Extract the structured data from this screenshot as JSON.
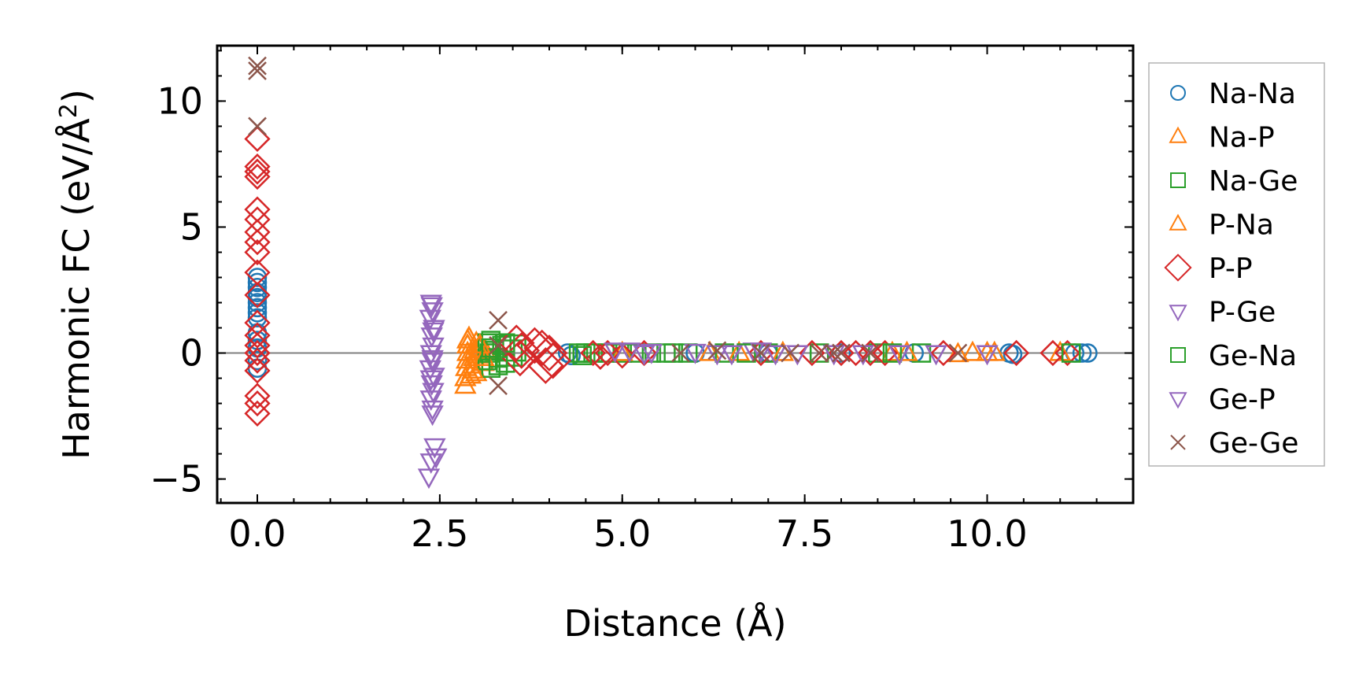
{
  "chart_data": {
    "type": "scatter",
    "xlabel": "Distance (Å)",
    "ylabel_main": "Harmonic FC (eV/Å",
    "ylabel_sup": "2",
    "ylabel_close": ")",
    "xlim": [
      -0.55,
      12.0
    ],
    "ylim": [
      -5.95,
      12.2
    ],
    "xticks": [
      0.0,
      2.5,
      5.0,
      7.5,
      10.0
    ],
    "xtick_labels": [
      "0.0",
      "2.5",
      "5.0",
      "7.5",
      "10.0"
    ],
    "yticks": [
      -5,
      0,
      5,
      10
    ],
    "ytick_labels": [
      "−5",
      "0",
      "5",
      "10"
    ],
    "x_minor_step": 0.5,
    "y_minor_step": 1,
    "zero_line": 0,
    "legend_position": "outside-right",
    "series": [
      {
        "name": "Na-Na",
        "label": "Na-Na",
        "color": "#1f77b4",
        "marker": "circle",
        "points": [
          [
            0,
            3.0
          ],
          [
            0,
            2.8
          ],
          [
            0,
            2.6
          ],
          [
            0,
            2.4
          ],
          [
            0,
            2.2
          ],
          [
            0,
            2.0
          ],
          [
            0,
            1.8
          ],
          [
            0,
            1.6
          ],
          [
            0,
            1.4
          ],
          [
            0,
            0.8
          ],
          [
            0,
            0.5
          ],
          [
            0,
            0.2
          ],
          [
            0,
            -0.3
          ],
          [
            0,
            -0.6
          ],
          [
            4.25,
            0
          ],
          [
            4.3,
            -0.1
          ],
          [
            6.0,
            0
          ],
          [
            7.0,
            0
          ],
          [
            8.0,
            0
          ],
          [
            9.0,
            0
          ],
          [
            10.3,
            0
          ],
          [
            10.35,
            -0.05
          ],
          [
            11.2,
            0
          ],
          [
            11.3,
            0
          ],
          [
            11.38,
            0
          ]
        ]
      },
      {
        "name": "Na-P",
        "label": "Na-P",
        "color": "#ff7f0e",
        "marker": "triangle-up",
        "points": [
          [
            2.85,
            -1.3
          ],
          [
            2.85,
            -1.0
          ],
          [
            2.86,
            -0.6
          ],
          [
            2.87,
            -0.3
          ],
          [
            2.88,
            0
          ],
          [
            2.88,
            0.3
          ],
          [
            2.9,
            0.6
          ],
          [
            2.92,
            -0.9
          ],
          [
            2.95,
            -0.5
          ],
          [
            2.97,
            -0.2
          ],
          [
            2.98,
            0.1
          ],
          [
            3.0,
            0.4
          ],
          [
            3.0,
            -0.8
          ],
          [
            3.02,
            -0.1
          ],
          [
            3.05,
            0.2
          ],
          [
            3.1,
            -0.4
          ],
          [
            3.12,
            0.1
          ],
          [
            6.2,
            0
          ],
          [
            8.7,
            0
          ],
          [
            9.6,
            -0.05
          ],
          [
            10.0,
            0
          ],
          [
            10.1,
            0
          ],
          [
            11.0,
            0
          ]
        ]
      },
      {
        "name": "Na-Ge",
        "label": "Na-Ge",
        "color": "#2ca02c",
        "marker": "square",
        "points": [
          [
            3.15,
            0.4
          ],
          [
            3.15,
            -0.3
          ],
          [
            3.18,
            0
          ],
          [
            3.2,
            0.5
          ],
          [
            3.2,
            -0.6
          ],
          [
            3.25,
            0.1
          ],
          [
            3.3,
            -0.2
          ],
          [
            3.35,
            0.3
          ],
          [
            3.4,
            -0.4
          ],
          [
            3.45,
            0
          ],
          [
            3.5,
            0.2
          ],
          [
            4.4,
            0
          ],
          [
            4.5,
            0
          ],
          [
            4.6,
            0
          ],
          [
            4.8,
            0
          ],
          [
            5.0,
            0
          ],
          [
            5.2,
            0
          ],
          [
            5.4,
            0
          ],
          [
            5.6,
            0
          ],
          [
            5.9,
            0
          ],
          [
            6.4,
            0
          ],
          [
            7.0,
            0
          ],
          [
            7.7,
            0
          ],
          [
            8.5,
            0
          ],
          [
            9.1,
            0
          ]
        ]
      },
      {
        "name": "P-Na",
        "label": "P-Na",
        "color": "#ff7f0e",
        "marker": "triangle-up",
        "points": [
          [
            2.88,
            0.5
          ],
          [
            2.95,
            -0.7
          ],
          [
            3.05,
            0.3
          ],
          [
            3.1,
            -0.2
          ],
          [
            5.0,
            0
          ],
          [
            6.6,
            0
          ],
          [
            7.2,
            0
          ],
          [
            8.9,
            0
          ],
          [
            9.8,
            0
          ]
        ]
      },
      {
        "name": "P-P",
        "label": "P-P",
        "color": "#d62728",
        "marker": "diamond",
        "points": [
          [
            0,
            8.5
          ],
          [
            0,
            7.4
          ],
          [
            0,
            7.2
          ],
          [
            0,
            7.0
          ],
          [
            0,
            5.7
          ],
          [
            0,
            5.3
          ],
          [
            0,
            4.8
          ],
          [
            0,
            4.4
          ],
          [
            0,
            4.0
          ],
          [
            0,
            3.2
          ],
          [
            0,
            2.3
          ],
          [
            0,
            1.2
          ],
          [
            0,
            0.7
          ],
          [
            0,
            0.3
          ],
          [
            0,
            0
          ],
          [
            0,
            -0.3
          ],
          [
            0,
            -0.7
          ],
          [
            0,
            -1.7
          ],
          [
            0,
            -2.0
          ],
          [
            0,
            -2.4
          ],
          [
            3.55,
            0.4
          ],
          [
            3.6,
            -0.2
          ],
          [
            3.62,
            0.1
          ],
          [
            3.8,
            0.3
          ],
          [
            3.9,
            0.2
          ],
          [
            3.95,
            -0.5
          ],
          [
            4.0,
            0
          ],
          [
            4.05,
            -0.3
          ],
          [
            4.6,
            0
          ],
          [
            4.7,
            -0.15
          ],
          [
            4.8,
            0
          ],
          [
            5.0,
            -0.1
          ],
          [
            5.3,
            0
          ],
          [
            6.9,
            0
          ],
          [
            7.6,
            0
          ],
          [
            8.0,
            0
          ],
          [
            8.2,
            0
          ],
          [
            8.4,
            0
          ],
          [
            8.6,
            0
          ],
          [
            9.4,
            0
          ],
          [
            10.4,
            0
          ],
          [
            10.9,
            0
          ],
          [
            11.1,
            0
          ]
        ]
      },
      {
        "name": "P-Ge",
        "label": "P-Ge",
        "color": "#9467bd",
        "marker": "triangle-down",
        "points": [
          [
            2.38,
            2.0
          ],
          [
            2.4,
            1.7
          ],
          [
            2.37,
            1.4
          ],
          [
            2.42,
            1.0
          ],
          [
            2.39,
            0.7
          ],
          [
            2.41,
            0.3
          ],
          [
            2.38,
            0
          ],
          [
            2.4,
            -0.3
          ],
          [
            2.37,
            -0.6
          ],
          [
            2.42,
            -0.9
          ],
          [
            2.39,
            -1.2
          ],
          [
            2.41,
            -1.5
          ],
          [
            2.38,
            -1.8
          ],
          [
            2.4,
            -2.2
          ],
          [
            2.43,
            -3.7
          ],
          [
            2.45,
            -4.1
          ],
          [
            2.38,
            -4.3
          ],
          [
            2.35,
            -4.9
          ],
          [
            5.1,
            0.1
          ],
          [
            5.4,
            0.05
          ],
          [
            6.3,
            0
          ],
          [
            6.8,
            0.1
          ],
          [
            7.4,
            0
          ],
          [
            8.3,
            0
          ]
        ]
      },
      {
        "name": "Ge-Na",
        "label": "Ge-Na",
        "color": "#2ca02c",
        "marker": "square",
        "points": [
          [
            3.2,
            0.2
          ],
          [
            3.3,
            -0.5
          ],
          [
            3.4,
            0.4
          ],
          [
            4.45,
            -0.1
          ],
          [
            5.7,
            0
          ],
          [
            6.7,
            0
          ],
          [
            8.7,
            0
          ],
          [
            11.15,
            0
          ]
        ]
      },
      {
        "name": "Ge-P",
        "label": "Ge-P",
        "color": "#9467bd",
        "marker": "triangle-down",
        "points": [
          [
            2.39,
            1.9
          ],
          [
            2.41,
            0.9
          ],
          [
            2.4,
            -0.2
          ],
          [
            2.38,
            -1.0
          ],
          [
            2.4,
            -2.4
          ],
          [
            4.9,
            0.1
          ],
          [
            5.3,
            0
          ],
          [
            6.0,
            0.05
          ],
          [
            6.5,
            0
          ],
          [
            6.9,
            0.1
          ],
          [
            7.1,
            0
          ],
          [
            7.9,
            0
          ],
          [
            8.8,
            0
          ],
          [
            9.3,
            0
          ],
          [
            10.0,
            0
          ]
        ]
      },
      {
        "name": "Ge-Ge",
        "label": "Ge-Ge",
        "color": "#8c564b",
        "marker": "x",
        "points": [
          [
            0,
            11.4
          ],
          [
            0,
            11.2
          ],
          [
            0,
            9.0
          ],
          [
            3.3,
            1.3
          ],
          [
            3.3,
            0.3
          ],
          [
            3.3,
            -1.3
          ],
          [
            5.8,
            0
          ],
          [
            6.3,
            0.1
          ],
          [
            6.9,
            0
          ],
          [
            7.3,
            0
          ],
          [
            7.7,
            0
          ],
          [
            7.9,
            0
          ],
          [
            8.0,
            0
          ],
          [
            8.4,
            0
          ],
          [
            9.6,
            0
          ]
        ]
      }
    ]
  }
}
